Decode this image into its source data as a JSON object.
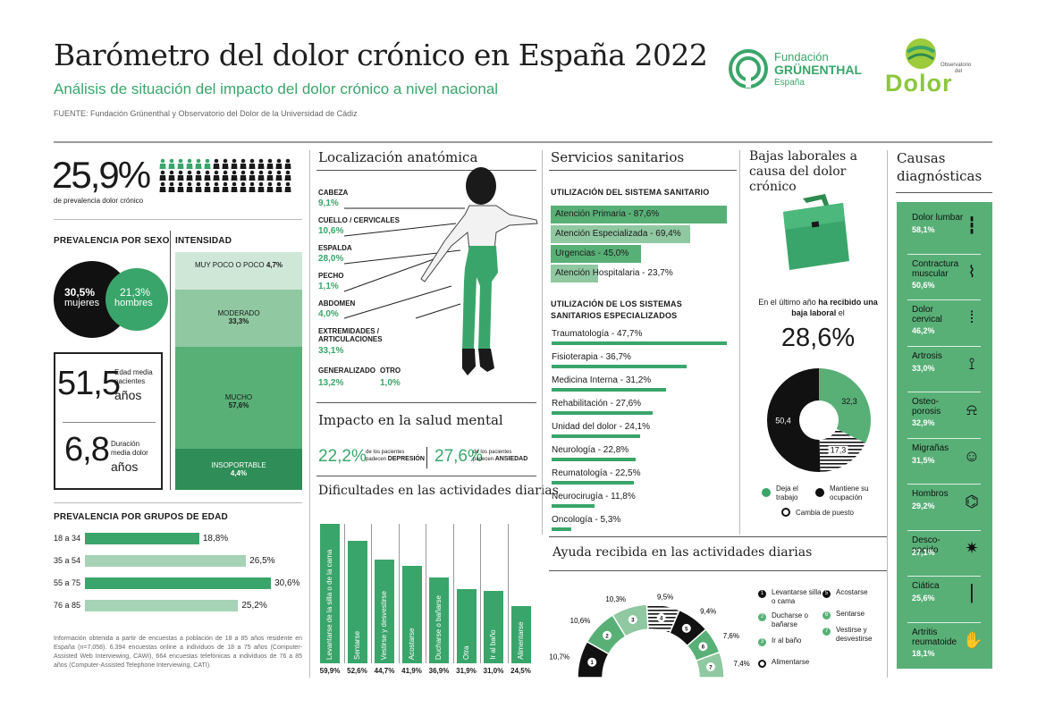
{
  "header": {
    "title": "Barómetro del dolor crónico en España 2022",
    "subtitle": "Análisis de situación del impacto del dolor crónico a nivel nacional",
    "source": "FUENTE: Fundación Grünenthal y Observatorio del Dolor de la Universidad de Cádiz",
    "logo1": {
      "line1": "Fundación",
      "line2": "GRÜNENTHAL",
      "line3": "España"
    },
    "logo2": {
      "line1": "Observatorio",
      "line2": "del",
      "line3": "Dolor"
    }
  },
  "prevalence": {
    "value": "25,9%",
    "label": "de prevalencia dolor crónico"
  },
  "sex": {
    "title": "PREVALENCIA POR SEXO",
    "women_value": "30,5%",
    "women_label": "mujeres",
    "men_value": "21,3%",
    "men_label": "hombres"
  },
  "intensity": {
    "title": "INTENSIDAD",
    "items": [
      {
        "label": "MUY POCO O POCO",
        "value": "4,7%"
      },
      {
        "label": "MODERADO",
        "value": "33,3%"
      },
      {
        "label": "MUCHO",
        "value": "57,6%"
      },
      {
        "label": "INSOPORTABLE",
        "value": "4,4%"
      }
    ]
  },
  "age_stats": {
    "age_value": "51,5",
    "age_label1": "Edad media",
    "age_label2": "pacientes",
    "age_unit": "años",
    "dur_value": "6,8",
    "dur_label1": "Duración",
    "dur_label2": "media dolor",
    "dur_unit": "años"
  },
  "age_groups": {
    "title": "PREVALENCIA POR GRUPOS DE EDAD",
    "items": [
      {
        "label": "18 a 34",
        "value": "18,8%",
        "pct": 18.8
      },
      {
        "label": "35 a 54",
        "value": "26,5%",
        "pct": 26.5
      },
      {
        "label": "55 a 75",
        "value": "30,6%",
        "pct": 30.6
      },
      {
        "label": "76 a 85",
        "value": "25,2%",
        "pct": 25.2
      }
    ]
  },
  "footnote": "Información obtenida a partir de encuestas a población de 18 a 85 años residente en España (n=7.058). 6.394 encuestas online a individuos de 18 a 75 años (Computer-Assisted Web Interviewing, CAWI), 664 encuestas telefónicas a individuos de 76 a 85 años (Computer-Assisted Telephone Interviewing, CATI).",
  "location": {
    "title": "Localización anatómica",
    "items": [
      {
        "label": "CABEZA",
        "value": "9,1%"
      },
      {
        "label": "CUELLO / CERVICALES",
        "value": "10,6%"
      },
      {
        "label": "ESPALDA",
        "value": "28,0%"
      },
      {
        "label": "PECHO",
        "value": "1,1%"
      },
      {
        "label": "ABDOMEN",
        "value": "4,0%"
      },
      {
        "label": "EXTREMIDADES / ARTICULACIONES",
        "value": "33,1%"
      },
      {
        "label": "GENERALIZADO",
        "value": "13,2%"
      },
      {
        "label": "OTRO",
        "value": "1,0%"
      }
    ]
  },
  "mental": {
    "title": "Impacto en la salud mental",
    "dep_value": "22,2%",
    "dep_text1": "de los pacientes",
    "dep_text2": "padecen",
    "dep_bold": "DEPRESIÓN",
    "anx_value": "27,6%",
    "anx_text1": "de los pacientes",
    "anx_text2": "padecen",
    "anx_bold": "ANSIEDAD"
  },
  "difficulties": {
    "title": "Dificultades en las actividades diarias",
    "chart_data": {
      "type": "bar",
      "categories": [
        "Levantarse de la silla o de la cama",
        "Sentarse",
        "Vestirse y desvestirse",
        "Acostarse",
        "Ducharse o bañarse",
        "Otra",
        "Ir al baño",
        "Alimentarse"
      ],
      "values": [
        59.9,
        52.6,
        44.7,
        41.9,
        36.9,
        31.9,
        31.0,
        24.5
      ],
      "labels": [
        "59,9%",
        "52,6%",
        "44,7%",
        "41,9%",
        "36,9%",
        "31,9%",
        "31,0%",
        "24,5%"
      ]
    }
  },
  "services": {
    "title": "Servicios sanitarios",
    "use_title": "UTILIZACIÓN DEL SISTEMA SANITARIO",
    "use_items": [
      {
        "label": "Atención Primaria - 87,6%",
        "pct": 87.6
      },
      {
        "label": "Atención Especializada - 69,4%",
        "pct": 69.4
      },
      {
        "label": "Urgencias - 45,0%",
        "pct": 45.0
      },
      {
        "label": "Atención Hospitalaria - 23,7%",
        "pct": 23.7
      }
    ],
    "spec_title": "UTILIZACIÓN DE LOS SISTEMAS SANITARIOS ESPECIALIZADOS",
    "spec_items": [
      {
        "label": "Traumatología - 47,7%",
        "pct": 47.7
      },
      {
        "label": "Fisioterapia - 36,7%",
        "pct": 36.7
      },
      {
        "label": "Medicina Interna - 31,2%",
        "pct": 31.2
      },
      {
        "label": "Rehabilitación - 27,6%",
        "pct": 27.6
      },
      {
        "label": "Unidad del dolor - 24,1%",
        "pct": 24.1
      },
      {
        "label": "Neurología - 22,8%",
        "pct": 22.8
      },
      {
        "label": "Reumatología - 22,5%",
        "pct": 22.5
      },
      {
        "label": "Neurocirugía - 11,8%",
        "pct": 11.8
      },
      {
        "label": "Oncología - 5,3%",
        "pct": 5.3
      }
    ]
  },
  "help": {
    "title": "Ayuda recibida en las actividades diarias",
    "chart_data": {
      "type": "pie",
      "values": [
        10.7,
        10.6,
        10.3,
        9.5,
        9.4,
        7.6,
        7.4
      ],
      "labels": [
        "10,7%",
        "10,6%",
        "10,3%",
        "9,5%",
        "9,4%",
        "7,6%",
        "7,4%"
      ]
    },
    "legend": [
      {
        "num": "1",
        "label": "Levantarse silla o cama"
      },
      {
        "num": "2",
        "label": "Ducharse o bañarse"
      },
      {
        "num": "3",
        "label": "Ir al baño"
      },
      {
        "num": "4",
        "label": "Alimentarse"
      },
      {
        "num": "5",
        "label": "Acostarse"
      },
      {
        "num": "6",
        "label": "Sentarse"
      },
      {
        "num": "7",
        "label": "Vestirse y desvestirse"
      }
    ]
  },
  "leave": {
    "title": "Bajas laborales a causa del dolor crónico",
    "text1": "En el último año",
    "text_bold": "ha recibido una baja laboral",
    "text2": "el",
    "value": "28,6%",
    "chart_data": {
      "type": "pie",
      "values": [
        32.3,
        17.3,
        50.4
      ],
      "labels": [
        "32,3",
        "17,3",
        "50,4"
      ]
    },
    "legend": [
      {
        "label": "Deja el trabajo",
        "color": "#3aa56a"
      },
      {
        "label": "Mantiene su ocupación",
        "color": "#111111"
      },
      {
        "label": "Cambia de puesto",
        "color": "#ffffff"
      }
    ]
  },
  "causes": {
    "title": "Causas diagnósticas",
    "items": [
      {
        "label": "Dolor lumbar",
        "value": "58,1%",
        "icon": "spine-icon"
      },
      {
        "label": "Contractura muscular",
        "value": "50,6%",
        "icon": "muscle-icon"
      },
      {
        "label": "Dolor cervical",
        "value": "46,2%",
        "icon": "neck-icon"
      },
      {
        "label": "Artrosis",
        "value": "33,0%",
        "icon": "knee-icon"
      },
      {
        "label": "Osteo-porosis",
        "value": "32,9%",
        "icon": "pelvis-icon"
      },
      {
        "label": "Migrañas",
        "value": "31,5%",
        "icon": "head-icon"
      },
      {
        "label": "Hombros",
        "value": "29,2%",
        "icon": "shoulder-icon"
      },
      {
        "label": "Desco-nocido",
        "value": "27,1%",
        "icon": "bulb-icon"
      },
      {
        "label": "Ciática",
        "value": "25,6%",
        "icon": "leg-icon"
      },
      {
        "label": "Artritis reumatoide",
        "value": "18,1%",
        "icon": "hand-icon"
      }
    ]
  }
}
